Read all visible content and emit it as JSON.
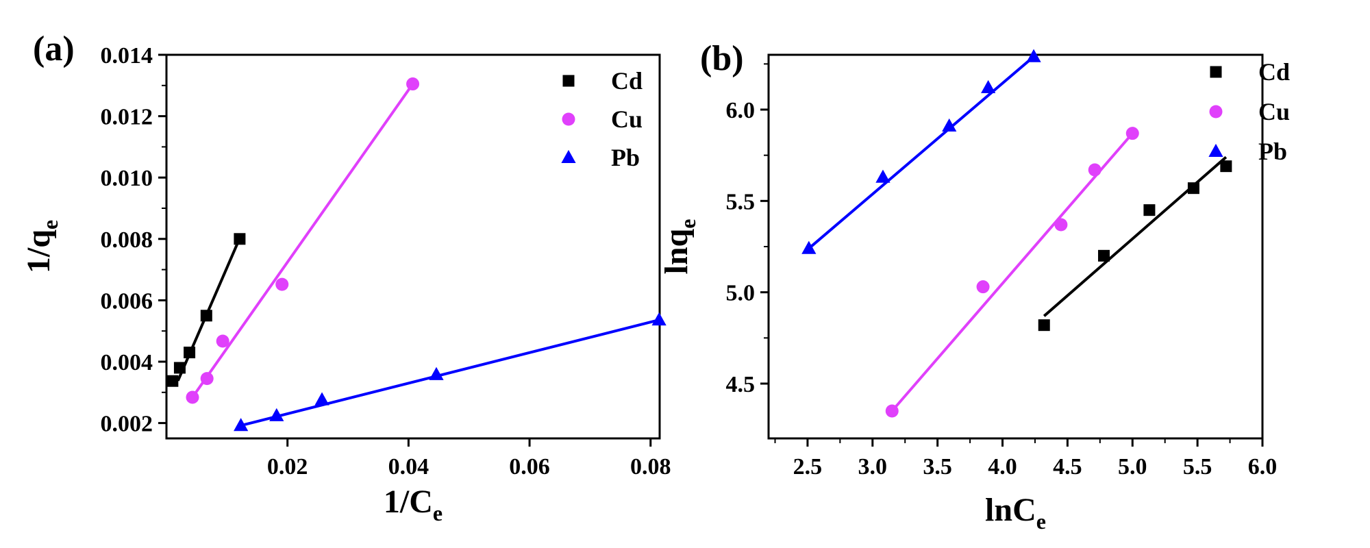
{
  "colors": {
    "Cd": "#000000",
    "Cu": "#e040fb",
    "Pb": "#0000ff"
  },
  "chart_data": [
    {
      "panel": "(a)",
      "type": "scatter",
      "xlabel": "1/C",
      "xlabel_sub": "e",
      "ylabel": "1/q",
      "ylabel_sub": "e",
      "xlim": [
        0.0,
        0.0815
      ],
      "ylim": [
        0.0015,
        0.014
      ],
      "xticks": [
        0.02,
        0.04,
        0.06,
        0.08
      ],
      "xtick_labels": [
        "0.02",
        "0.04",
        "0.06",
        "0.08"
      ],
      "yticks": [
        0.002,
        0.004,
        0.006,
        0.008,
        0.01,
        0.012,
        0.014
      ],
      "ytick_labels": [
        "0.002",
        "0.004",
        "0.006",
        "0.008",
        "0.010",
        "0.012",
        "0.014"
      ],
      "legend_position": "top-right",
      "series": [
        {
          "name": "Cd",
          "marker": "square",
          "x": [
            0.001,
            0.0022,
            0.0038,
            0.0066,
            0.0121
          ],
          "y": [
            0.00337,
            0.0038,
            0.0043,
            0.0055,
            0.008
          ],
          "fit": [
            [
              0.0019,
              0.00338
            ],
            [
              0.0121,
              0.00802
            ]
          ]
        },
        {
          "name": "Cu",
          "marker": "circle",
          "x": [
            0.0043,
            0.0067,
            0.0093,
            0.0191,
            0.0407
          ],
          "y": [
            0.00284,
            0.00345,
            0.00467,
            0.00652,
            0.01305
          ],
          "fit": [
            [
              0.0043,
              0.00284
            ],
            [
              0.0407,
              0.01305
            ]
          ]
        },
        {
          "name": "Pb",
          "marker": "triangle",
          "x": [
            0.0123,
            0.0182,
            0.0257,
            0.0446,
            0.0814
          ],
          "y": [
            0.00192,
            0.00224,
            0.00276,
            0.00358,
            0.00536
          ],
          "fit": [
            [
              0.0123,
              0.00192
            ],
            [
              0.0814,
              0.00536
            ]
          ]
        }
      ]
    },
    {
      "panel": "(b)",
      "type": "scatter",
      "xlabel": "lnC",
      "xlabel_sub": "e",
      "ylabel": "lnq",
      "ylabel_sub": "e",
      "xlim": [
        2.2,
        6.0
      ],
      "ylim": [
        4.2,
        6.3
      ],
      "xticks": [
        2.5,
        3.0,
        3.5,
        4.0,
        4.5,
        5.0,
        5.5,
        6.0
      ],
      "xtick_labels": [
        "2.5",
        "3.0",
        "3.5",
        "4.0",
        "4.5",
        "5.0",
        "5.5",
        "6.0"
      ],
      "yticks": [
        4.5,
        5.0,
        5.5,
        6.0
      ],
      "ytick_labels": [
        "4.5",
        "5.0",
        "5.5",
        "6.0"
      ],
      "legend_position": "top-right",
      "series": [
        {
          "name": "Cd",
          "marker": "square",
          "x": [
            4.32,
            4.78,
            5.13,
            5.47,
            5.72
          ],
          "y": [
            4.82,
            5.2,
            5.45,
            5.57,
            5.69
          ],
          "fit": [
            [
              4.32,
              4.87
            ],
            [
              5.72,
              5.74
            ]
          ]
        },
        {
          "name": "Cu",
          "marker": "circle",
          "x": [
            3.15,
            3.85,
            4.45,
            4.71,
            5.0
          ],
          "y": [
            4.35,
            5.03,
            5.37,
            5.67,
            5.87
          ],
          "fit": [
            [
              3.15,
              4.35
            ],
            [
              5.0,
              5.87
            ]
          ]
        },
        {
          "name": "Pb",
          "marker": "triangle",
          "x": [
            2.51,
            3.08,
            3.59,
            3.89,
            4.24
          ],
          "y": [
            5.24,
            5.63,
            5.91,
            6.12,
            6.29
          ],
          "fit": [
            [
              2.51,
              5.24
            ],
            [
              4.24,
              6.29
            ]
          ]
        }
      ]
    }
  ]
}
